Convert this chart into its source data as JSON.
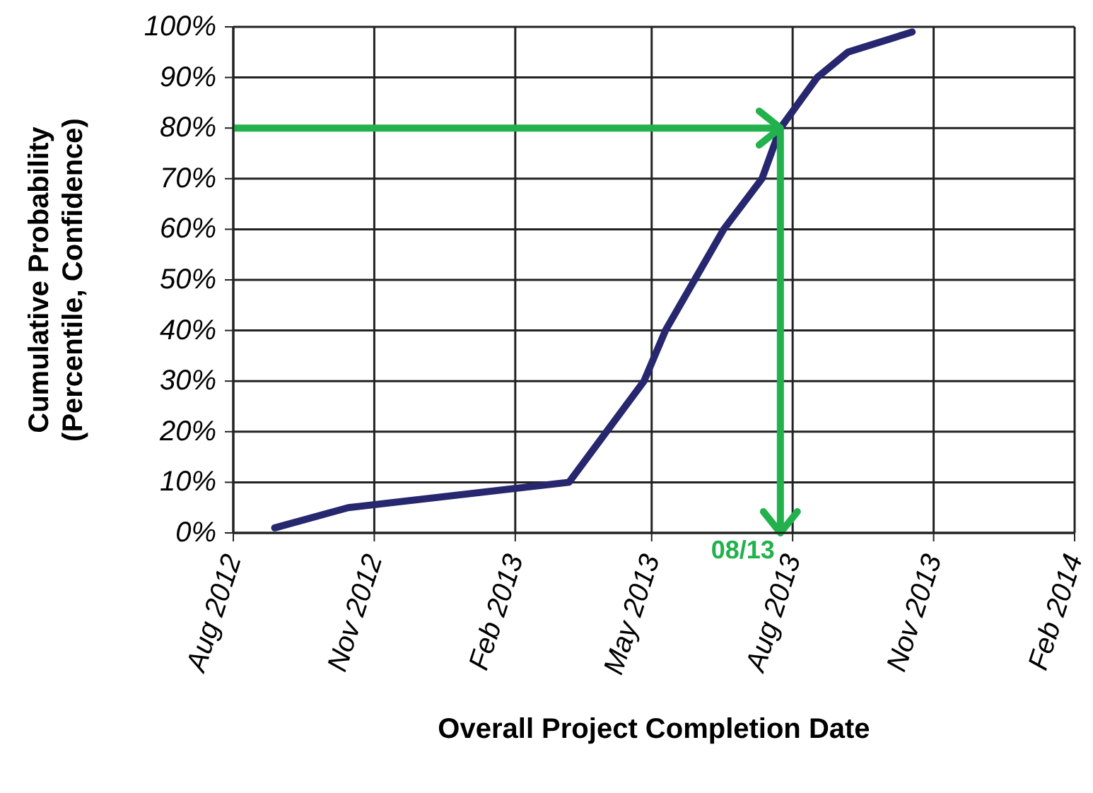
{
  "chart_data": {
    "type": "line",
    "xlabel": "Overall Project Completion Date",
    "ylabel": "Cumulative Probability\n(Percentile, Confidence)",
    "x": [
      "2012-08-28",
      "2012-10-15",
      "2013-03-08",
      "2013-04-26",
      "2013-05-10",
      "2013-06-17",
      "2013-07-12",
      "2013-07-24",
      "2013-08-17",
      "2013-09-06",
      "2013-10-18"
    ],
    "series": [
      {
        "color": "#26276f",
        "values": [
          1,
          5,
          10,
          30,
          40,
          60,
          70,
          80,
          90,
          95,
          99
        ]
      }
    ],
    "xlim": [
      "2012-08-01",
      "2014-02-01"
    ],
    "xticks": [
      {
        "value": "2012-08-01",
        "label": "Aug 2012"
      },
      {
        "value": "2012-11-01",
        "label": "Nov 2012"
      },
      {
        "value": "2013-02-01",
        "label": "Feb 2013"
      },
      {
        "value": "2013-05-01",
        "label": "May 2013"
      },
      {
        "value": "2013-08-01",
        "label": "Aug 2013"
      },
      {
        "value": "2013-11-01",
        "label": "Nov 2013"
      },
      {
        "value": "2014-02-01",
        "label": "Feb 2014"
      }
    ],
    "ylim": [
      0,
      100
    ],
    "yticks": [
      {
        "value": 0,
        "label": "0%"
      },
      {
        "value": 10,
        "label": "10%"
      },
      {
        "value": 20,
        "label": "20%"
      },
      {
        "value": 30,
        "label": "30%"
      },
      {
        "value": 40,
        "label": "40%"
      },
      {
        "value": 50,
        "label": "50%"
      },
      {
        "value": 60,
        "label": "60%"
      },
      {
        "value": 70,
        "label": "70%"
      },
      {
        "value": 80,
        "label": "80%"
      },
      {
        "value": 90,
        "label": "90%"
      },
      {
        "value": 100,
        "label": "100%"
      }
    ],
    "grid": true,
    "line_style": "solid",
    "ref_lines": [
      {
        "axis": "y",
        "value": 80,
        "color": "#22b14c"
      },
      {
        "axis": "x",
        "value": "2013-07-24",
        "label": "08/13",
        "color": "#22b14c"
      }
    ]
  }
}
